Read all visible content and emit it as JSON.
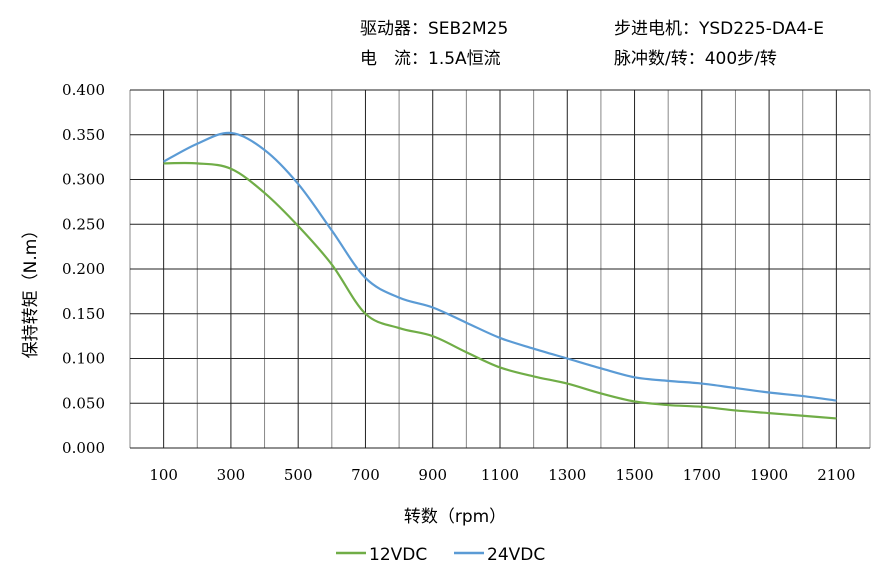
{
  "header": {
    "driver": "驱动器：SEB2M25",
    "current": "电　流：1.5A恒流",
    "motor": "步进电机：YSD225-DA4-E",
    "pulses": "脉冲数/转：400步/转"
  },
  "chart_data": {
    "type": "line",
    "title": "",
    "xlabel": "转数（rpm）",
    "ylabel": "保持转矩（N.m）",
    "xlim": [
      0,
      2200
    ],
    "ylim": [
      0,
      0.4
    ],
    "grid": true,
    "legend_placement": "bottom",
    "x_ticks": [
      "100",
      "300",
      "500",
      "700",
      "900",
      "1100",
      "1300",
      "1500",
      "1700",
      "1900",
      "2100"
    ],
    "y_ticks": [
      "0.000",
      "0.050",
      "0.100",
      "0.150",
      "0.200",
      "0.250",
      "0.300",
      "0.350",
      "0.400"
    ],
    "x": [
      100,
      200,
      300,
      400,
      500,
      600,
      700,
      800,
      900,
      1000,
      1100,
      1200,
      1300,
      1400,
      1500,
      1600,
      1700,
      1800,
      1900,
      2000,
      2100
    ],
    "series": [
      {
        "name": "12VDC",
        "color": "#70AD47",
        "values": [
          0.318,
          0.318,
          0.312,
          0.285,
          0.248,
          0.205,
          0.15,
          0.134,
          0.125,
          0.107,
          0.09,
          0.08,
          0.072,
          0.061,
          0.052,
          0.048,
          0.046,
          0.042,
          0.039,
          0.036,
          0.033
        ]
      },
      {
        "name": "24VDC",
        "color": "#5B9BD5",
        "values": [
          0.32,
          0.34,
          0.352,
          0.333,
          0.295,
          0.243,
          0.19,
          0.168,
          0.157,
          0.14,
          0.123,
          0.111,
          0.1,
          0.089,
          0.079,
          0.075,
          0.072,
          0.067,
          0.062,
          0.058,
          0.053
        ]
      }
    ]
  }
}
